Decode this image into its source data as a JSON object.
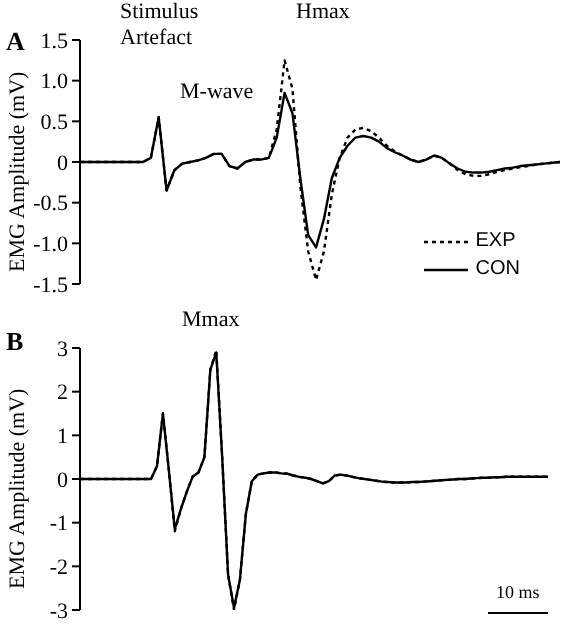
{
  "chart_data": [
    {
      "type": "line",
      "ylabel": "EMG Amplitude (mV)",
      "annotations": [
        "A",
        "Stimulus Artefact",
        "M-wave",
        "Hmax"
      ],
      "legend": "bottom right",
      "categories": [
        null,
        null,
        null,
        null,
        null,
        null,
        null,
        null,
        null,
        null,
        null,
        null,
        null,
        null,
        null,
        null,
        null,
        null,
        null,
        null,
        null,
        null,
        null,
        null,
        null,
        null,
        null,
        null,
        null,
        null,
        null,
        null,
        null,
        null,
        null,
        null,
        null,
        null,
        null,
        null,
        null,
        null,
        null,
        null,
        null,
        null,
        null,
        null,
        null,
        null,
        null,
        null,
        null,
        null,
        null,
        null,
        null,
        null,
        null,
        null,
        null,
        null
      ],
      "ylim": [
        -1.5,
        1.5
      ],
      "yticks": [
        -1.5,
        {
          "value": -1,
          "label": "-1.0"
        },
        -0.5,
        0,
        0.5,
        {
          "value": 1,
          "label": "1.0"
        },
        1.5
      ],
      "series": [
        {
          "name": "EXP",
          "color": "#000000",
          "line_style": "dotted",
          "values": [
            0,
            0,
            0,
            0,
            0,
            0,
            0,
            0,
            0,
            0.05,
            0.55,
            -0.35,
            -0.1,
            -0.02,
            0,
            0.02,
            0.05,
            0.1,
            0.1,
            -0.05,
            -0.08,
            0,
            0.03,
            0.03,
            0.05,
            0.4,
            1.25,
            0.9,
            -0.3,
            -1.1,
            -1.45,
            -1.1,
            -0.4,
            0.05,
            0.3,
            0.4,
            0.42,
            0.38,
            0.3,
            0.2,
            0.13,
            0.08,
            0.03,
            0,
            0.03,
            0.08,
            0.05,
            -0.02,
            -0.1,
            -0.15,
            -0.17,
            -0.17,
            -0.15,
            -0.12,
            -0.1,
            -0.08,
            -0.06,
            -0.05,
            -0.03,
            -0.02,
            -0.01,
            0
          ]
        },
        {
          "name": "CON",
          "color": "#000000",
          "line_style": "solid",
          "values": [
            0,
            0,
            0,
            0,
            0,
            0,
            0,
            0,
            0,
            0.05,
            0.55,
            -0.35,
            -0.1,
            -0.02,
            0,
            0.02,
            0.05,
            0.1,
            0.1,
            -0.05,
            -0.08,
            0,
            0.03,
            0.03,
            0.05,
            0.3,
            0.85,
            0.6,
            -0.2,
            -0.9,
            -1.05,
            -0.7,
            -0.2,
            0.05,
            0.2,
            0.3,
            0.32,
            0.3,
            0.25,
            0.17,
            0.12,
            0.08,
            0.03,
            0,
            0.03,
            0.08,
            0.05,
            -0.02,
            -0.08,
            -0.12,
            -0.13,
            -0.13,
            -0.12,
            -0.1,
            -0.08,
            -0.07,
            -0.05,
            -0.04,
            -0.03,
            -0.02,
            -0.01,
            0
          ]
        }
      ]
    },
    {
      "type": "line",
      "ylabel": "EMG Amplitude (mV)",
      "annotations": [
        "B",
        "Mmax",
        "10 ms"
      ],
      "categories": [
        null,
        null,
        null,
        null,
        null,
        null,
        null,
        null,
        null,
        null,
        null,
        null,
        null,
        null,
        null,
        null,
        null,
        null,
        null,
        null,
        null,
        null,
        null,
        null,
        null,
        null,
        null,
        null,
        null,
        null,
        null,
        null,
        null,
        null,
        null,
        null,
        null,
        null,
        null,
        null,
        null,
        null,
        null,
        null,
        null,
        null,
        null,
        null,
        null,
        null,
        null,
        null,
        null,
        null,
        null,
        null,
        null,
        null,
        null,
        null,
        null,
        null,
        null,
        null,
        null,
        null,
        null,
        null,
        null,
        null,
        null,
        null,
        null,
        null,
        null,
        null,
        null,
        null,
        null,
        null
      ],
      "ylim": [
        -3,
        3
      ],
      "yticks": [
        -3,
        -2,
        -1,
        0,
        1,
        2,
        3
      ],
      "series": [
        {
          "color": "#000000",
          "line_style": "dotted",
          "values": [
            0,
            0,
            0,
            0,
            0,
            0,
            0,
            0,
            0,
            0,
            0,
            0,
            0,
            0.3,
            1.5,
            0.2,
            -1.2,
            -0.7,
            -0.3,
            0.05,
            0.15,
            0.5,
            2.5,
            2.95,
            0.5,
            -2.2,
            -3,
            -2.3,
            -0.8,
            -0.05,
            0.1,
            0.13,
            0.15,
            0.15,
            0.13,
            0.12,
            0.08,
            0.05,
            0.03,
            0,
            -0.05,
            -0.1,
            -0.05,
            0.08,
            0.1,
            0.08,
            0.05,
            0.02,
            0,
            -0.02,
            -0.04,
            -0.06,
            -0.07,
            -0.08,
            -0.08,
            -0.08,
            -0.07,
            -0.07,
            -0.06,
            -0.05,
            -0.04,
            -0.03,
            -0.02,
            -0.01,
            0,
            0,
            0.01,
            0.02,
            0.03,
            0.03,
            0.04,
            0.04,
            0.05,
            0.05,
            0.05,
            0.05,
            0.05,
            0.05,
            0.05,
            0.05
          ]
        },
        {
          "color": "#000000",
          "line_style": "solid",
          "values": [
            0,
            0,
            0,
            0,
            0,
            0,
            0,
            0,
            0,
            0,
            0,
            0,
            0,
            0.3,
            1.5,
            0.2,
            -1.15,
            -0.7,
            -0.3,
            0.05,
            0.15,
            0.5,
            2.5,
            2.9,
            0.5,
            -2.2,
            -2.95,
            -2.3,
            -0.8,
            -0.05,
            0.1,
            0.13,
            0.15,
            0.15,
            0.13,
            0.12,
            0.08,
            0.05,
            0.03,
            0,
            -0.05,
            -0.1,
            -0.05,
            0.08,
            0.1,
            0.08,
            0.05,
            0.02,
            0,
            -0.02,
            -0.04,
            -0.06,
            -0.07,
            -0.08,
            -0.08,
            -0.08,
            -0.07,
            -0.07,
            -0.06,
            -0.05,
            -0.04,
            -0.03,
            -0.02,
            -0.01,
            0,
            0,
            0.01,
            0.02,
            0.03,
            0.03,
            0.04,
            0.04,
            0.05,
            0.05,
            0.05,
            0.05,
            0.05,
            0.05,
            0.05,
            0.05
          ]
        }
      ]
    }
  ]
}
